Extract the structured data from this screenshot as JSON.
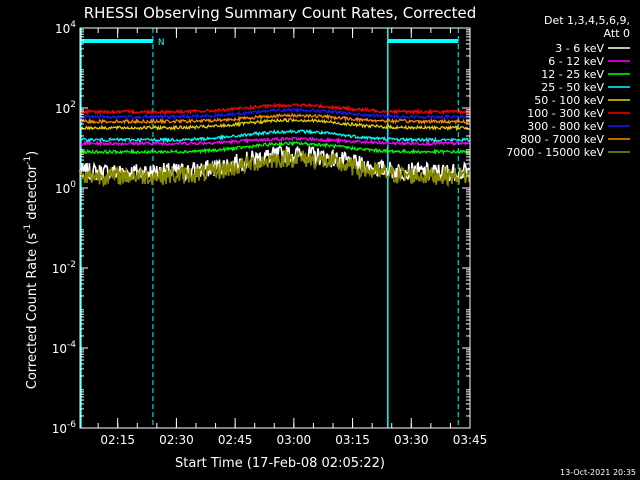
{
  "chart_data": {
    "type": "line",
    "title": "RHESSI Observing Summary Count Rates, Corrected",
    "xlabel": "Start Time (17-Feb-08 02:05:22)",
    "ylabel_parts": [
      "Corrected Count Rate (s",
      "-1",
      " detector",
      "-1",
      ")"
    ],
    "yscale": "log",
    "ylim": [
      1e-06,
      10000.0
    ],
    "y_ticks": [
      {
        "base": "10",
        "exp": "-6",
        "value": 1e-06
      },
      {
        "base": "10",
        "exp": "-4",
        "value": 0.0001
      },
      {
        "base": "10",
        "exp": "-2",
        "value": 0.01
      },
      {
        "base": "10",
        "exp": "0",
        "value": 1
      },
      {
        "base": "10",
        "exp": "2",
        "value": 100
      },
      {
        "base": "10",
        "exp": "4",
        "value": 10000
      }
    ],
    "xlim": [
      "02:05:22",
      "03:45:00"
    ],
    "x_ticks": [
      "02:15",
      "02:30",
      "02:45",
      "03:00",
      "03:15",
      "03:30",
      "03:45"
    ],
    "legend_header": [
      "Det 1,3,4,5,6,9,",
      "Att 0"
    ],
    "legend_position": "right",
    "series": [
      {
        "name": "3 - 6 keV",
        "color": "#ffffff",
        "base": 2.5,
        "peak": 7.0
      },
      {
        "name": "6 - 12 keV",
        "color": "#ff00ff",
        "base": 13,
        "peak": 17
      },
      {
        "name": "12 - 25 keV",
        "color": "#00ff00",
        "base": 8,
        "peak": 13
      },
      {
        "name": "25 - 50 keV",
        "color": "#00ffff",
        "base": 16,
        "peak": 26
      },
      {
        "name": "50 - 100 keV",
        "color": "#e8d000",
        "base": 32,
        "peak": 50
      },
      {
        "name": "100 - 300 keV",
        "color": "#ff0000",
        "base": 80,
        "peak": 118
      },
      {
        "name": "300 - 800 keV",
        "color": "#1818ff",
        "base": 60,
        "peak": 90
      },
      {
        "name": "800 - 7000 keV",
        "color": "#ff8c00",
        "base": 46,
        "peak": 65
      },
      {
        "name": "7000 - 15000 keV",
        "color": "#8a8a00",
        "base": 2.0,
        "peak": 5.5
      }
    ],
    "intervals": {
      "night": [
        [
          "02:05:22",
          "02:24:00"
        ],
        [
          "03:24:00",
          "03:42:00"
        ]
      ],
      "saa_label": "N"
    },
    "footer_date": "13-Oct-2021 20:35",
    "colors": {
      "background": "#000000",
      "axes": "#ffffff",
      "markers": "#00ffff"
    }
  }
}
